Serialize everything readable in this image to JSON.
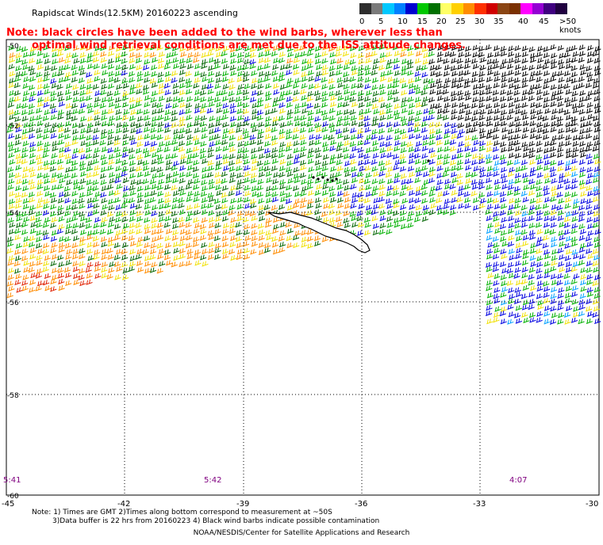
{
  "title": "Rapidscat Winds(12.5KM) 20160223 ascending",
  "note_line1": "Note: black circles have been added to the wind barbs, wherever less than",
  "note_line2": "optimal wind retrieval conditions are met due to the ISS attitude changes.",
  "legend": {
    "labels": [
      "0",
      "5",
      "10",
      "15",
      "20",
      "25",
      "30",
      "35",
      "40",
      "45",
      ">50 knots"
    ],
    "colors": [
      "#2e2e2e",
      "#7a7a7a",
      "#00c8ff",
      "#0080ff",
      "#0000d0",
      "#00c800",
      "#007000",
      "#ffff66",
      "#ffd000",
      "#ff8c00",
      "#ff3000",
      "#d00000",
      "#8b4513",
      "#7a3000",
      "#ff00ff",
      "#9400d3",
      "#400080",
      "#200040"
    ]
  },
  "lat_labels": [
    "-50",
    "-52",
    "-54",
    "-56",
    "-58",
    "-60"
  ],
  "lon_labels": [
    "-45",
    "-42",
    "-39",
    "-36",
    "-33",
    "-30"
  ],
  "time_labels": [
    "5:41",
    "5:42",
    "4:07"
  ],
  "footer": {
    "line1": "Note: 1) Times are GMT 2)Times along bottom correspond to measurement at ~50S",
    "line2": "3)Data buffer is 22 hrs from 20160223 4) Black wind barbs indicate possible contamination",
    "line3": "NOAA/NESDIS/Center for Satellite Applications and Research"
  },
  "barb_colors": {
    "green": "#00b000",
    "dark_green": "#006400",
    "yellow": "#f0e000",
    "orange": "#ff8c00",
    "red": "#e02000",
    "blue": "#0000e0",
    "cyan": "#00a0ff",
    "black": "#000000"
  },
  "land_name": "",
  "grid_color": "#000000",
  "time_label_color": "#800080"
}
